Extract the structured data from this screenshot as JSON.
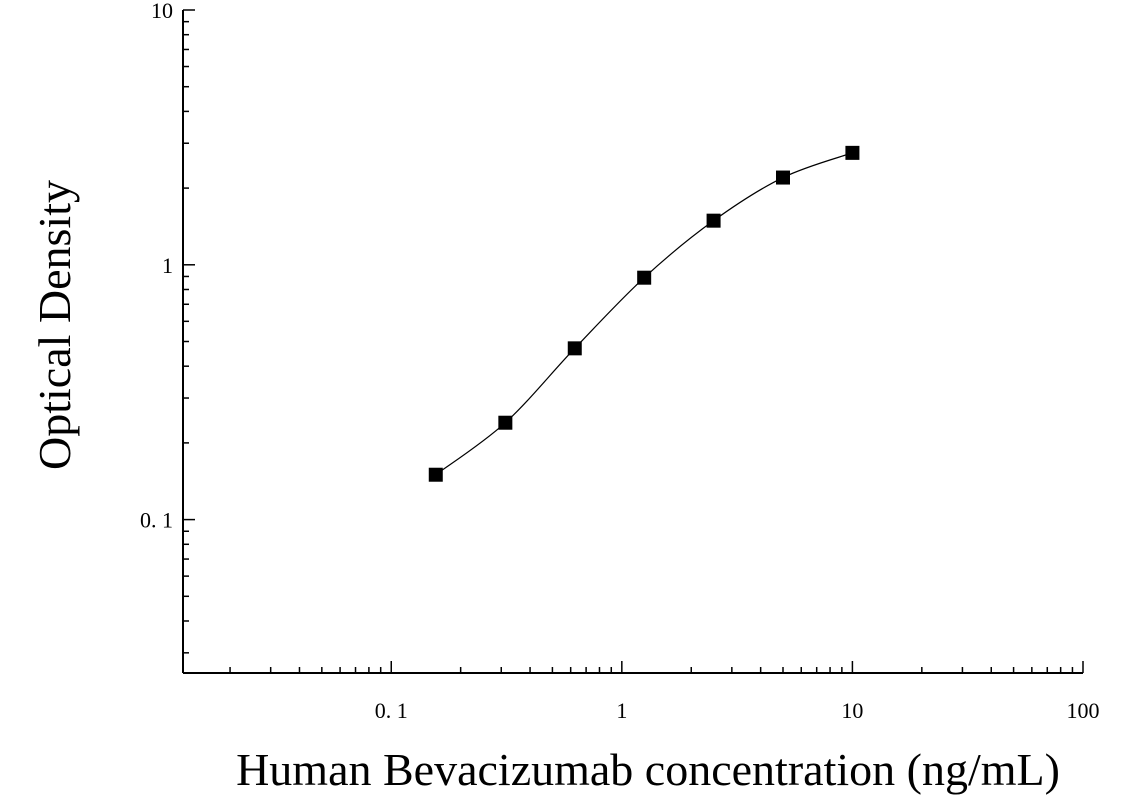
{
  "chart_data": {
    "type": "scatter",
    "xlabel": "Human Bevacizumab concentration (ng/mL)",
    "ylabel": "Optical Density",
    "xscale": "log",
    "yscale": "log",
    "xlim": [
      0.0125,
      100
    ],
    "ylim": [
      0.025,
      10
    ],
    "x_ticks": [
      {
        "value": 0.1,
        "label": "0. 1"
      },
      {
        "value": 1,
        "label": "1"
      },
      {
        "value": 10,
        "label": "10"
      },
      {
        "value": 100,
        "label": "100"
      }
    ],
    "y_ticks": [
      {
        "value": 0.1,
        "label": "0. 1"
      },
      {
        "value": 1,
        "label": "1"
      },
      {
        "value": 10,
        "label": "10"
      }
    ],
    "series": [
      {
        "marker": "square",
        "color": "#000000",
        "points": [
          {
            "x": 0.156,
            "y": 0.15
          },
          {
            "x": 0.3125,
            "y": 0.24
          },
          {
            "x": 0.625,
            "y": 0.47
          },
          {
            "x": 1.25,
            "y": 0.89
          },
          {
            "x": 2.5,
            "y": 1.49
          },
          {
            "x": 5,
            "y": 2.2
          },
          {
            "x": 10,
            "y": 2.75
          }
        ]
      }
    ],
    "fit_curve": true,
    "grid": false,
    "legend": "none"
  }
}
